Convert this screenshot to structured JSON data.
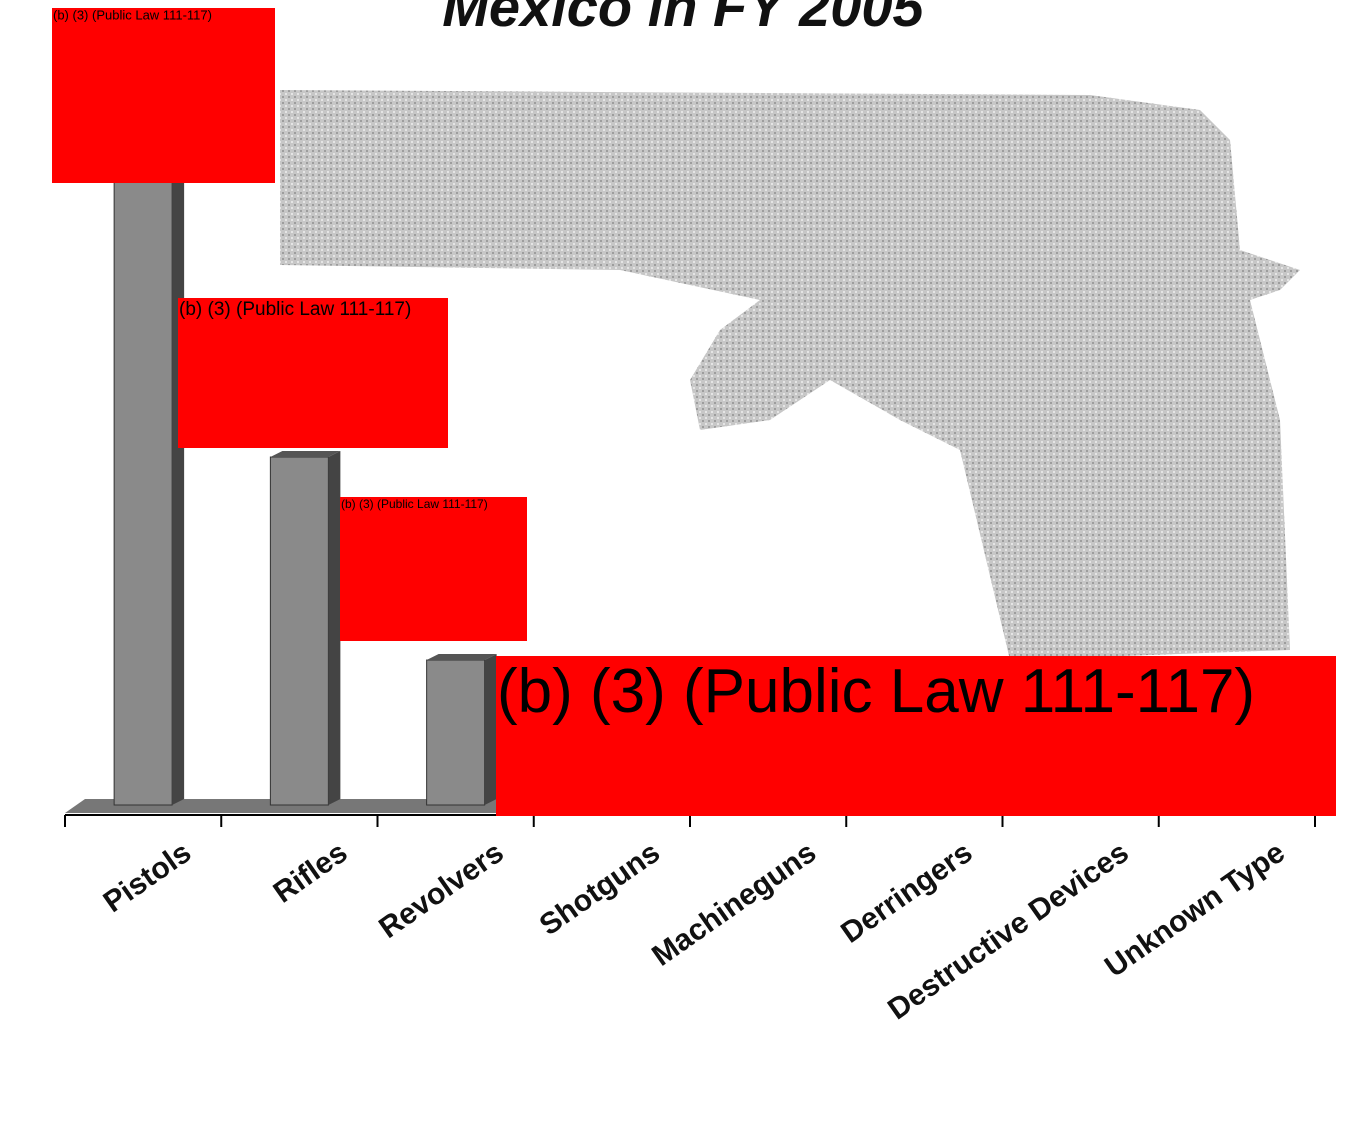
{
  "chart_data": {
    "type": "bar",
    "title": "Mexico in FY 2005",
    "categories": [
      "Pistols",
      "Rifles",
      "Revolvers",
      "Shotguns",
      "Machineguns",
      "Derringers",
      "Destructive Devices",
      "Unknown Type"
    ],
    "values": [
      655,
      348,
      145,
      null,
      null,
      null,
      null,
      null
    ],
    "color": "#8a8a8a",
    "annotations": [
      "(b) (3) (Public Law 111-117)",
      "(b) (3) (Public Law 111-117)",
      "(b) (3) (Public Law 111-117)",
      "(b) (3) (Public Law 111-117)"
    ]
  }
}
